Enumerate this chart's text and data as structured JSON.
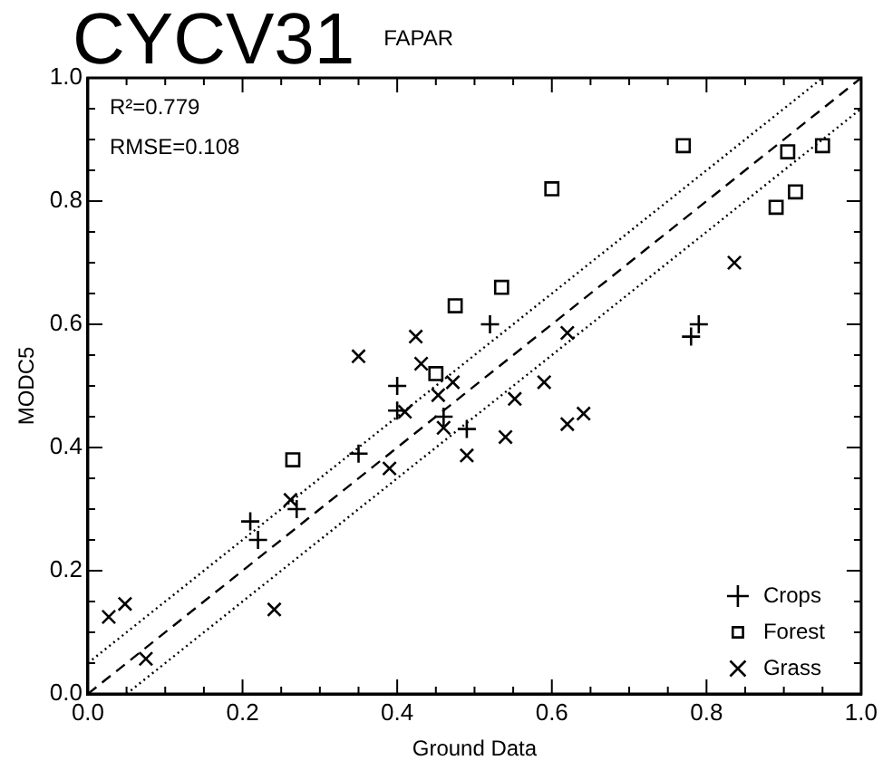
{
  "chart_data": {
    "type": "scatter",
    "title": "CYCV31",
    "subtitle": "FAPAR",
    "xlabel": "Ground Data",
    "ylabel": "MODC5",
    "annotations": [
      "R²=0.779",
      "RMSE=0.108"
    ],
    "xlim": [
      0,
      1
    ],
    "ylim": [
      0,
      1
    ],
    "xticks": [
      {
        "value": 0,
        "label": "0.0"
      },
      {
        "value": 0.05,
        "label": null
      },
      {
        "value": 0.1,
        "label": null
      },
      {
        "value": 0.15,
        "label": null
      },
      0.2,
      {
        "value": 0.25,
        "label": null
      },
      {
        "value": 0.3,
        "label": null
      },
      {
        "value": 0.35,
        "label": null
      },
      0.4,
      {
        "value": 0.45,
        "label": null
      },
      {
        "value": 0.5,
        "label": null
      },
      {
        "value": 0.55,
        "label": null
      },
      0.6,
      {
        "value": 0.65,
        "label": null
      },
      {
        "value": 0.7,
        "label": null
      },
      {
        "value": 0.75,
        "label": null
      },
      0.8,
      {
        "value": 0.85,
        "label": null
      },
      {
        "value": 0.9,
        "label": null
      },
      {
        "value": 0.95,
        "label": null
      },
      {
        "value": 1,
        "label": "1.0"
      }
    ],
    "yticks": [
      {
        "value": 0,
        "label": "0.0"
      },
      {
        "value": 0.05,
        "label": null
      },
      {
        "value": 0.1,
        "label": null
      },
      {
        "value": 0.15,
        "label": null
      },
      0.2,
      {
        "value": 0.25,
        "label": null
      },
      {
        "value": 0.3,
        "label": null
      },
      {
        "value": 0.35,
        "label": null
      },
      0.4,
      {
        "value": 0.45,
        "label": null
      },
      {
        "value": 0.5,
        "label": null
      },
      {
        "value": 0.55,
        "label": null
      },
      0.6,
      {
        "value": 0.65,
        "label": null
      },
      {
        "value": 0.7,
        "label": null
      },
      {
        "value": 0.75,
        "label": null
      },
      0.8,
      {
        "value": 0.85,
        "label": null
      },
      {
        "value": 0.9,
        "label": null
      },
      {
        "value": 0.95,
        "label": null
      },
      {
        "value": 1,
        "label": "1.0"
      }
    ],
    "grid": false,
    "legend": "bottom right",
    "series": [
      {
        "type": "line",
        "color": "#000000",
        "line_style": "dotted",
        "marker": "none",
        "x": [
          0,
          0.95
        ],
        "values": [
          0.05,
          1
        ]
      },
      {
        "type": "line",
        "color": "#000000",
        "line_style": "dashed",
        "marker": "none",
        "x": [
          0,
          1
        ],
        "values": [
          0,
          1
        ]
      },
      {
        "type": "line",
        "color": "#000000",
        "line_style": "dotted",
        "marker": "none",
        "x": [
          0.05,
          1
        ],
        "values": [
          0,
          0.95
        ]
      },
      {
        "name": "Crops",
        "color": "#000000",
        "marker": "plus",
        "x": [
          0.21,
          0.22,
          0.27,
          0.35,
          0.4,
          0.4,
          0.46,
          0.49,
          0.52,
          0.78,
          0.79
        ],
        "values": [
          0.28,
          0.25,
          0.3,
          0.39,
          0.5,
          0.46,
          0.45,
          0.43,
          0.6,
          0.58,
          0.6
        ]
      },
      {
        "name": "Forest",
        "color": "#000000",
        "marker": "square",
        "x": [
          0.265,
          0.45,
          0.475,
          0.535,
          0.6,
          0.77,
          0.89,
          0.905,
          0.915,
          0.95
        ],
        "values": [
          0.38,
          0.52,
          0.63,
          0.66,
          0.82,
          0.89,
          0.79,
          0.88,
          0.815,
          0.89
        ]
      },
      {
        "name": "Grass",
        "color": "#000000",
        "marker": "cross",
        "x": [
          0.027,
          0.048,
          0.075,
          0.241,
          0.262,
          0.35,
          0.39,
          0.41,
          0.424,
          0.431,
          0.453,
          0.46,
          0.472,
          0.49,
          0.54,
          0.552,
          0.59,
          0.62,
          0.62,
          0.641,
          0.836
        ],
        "values": [
          0.125,
          0.146,
          0.057,
          0.137,
          0.315,
          0.548,
          0.366,
          0.458,
          0.58,
          0.536,
          0.485,
          0.432,
          0.506,
          0.387,
          0.417,
          0.479,
          0.506,
          0.586,
          0.438,
          0.455,
          0.7
        ]
      }
    ]
  }
}
